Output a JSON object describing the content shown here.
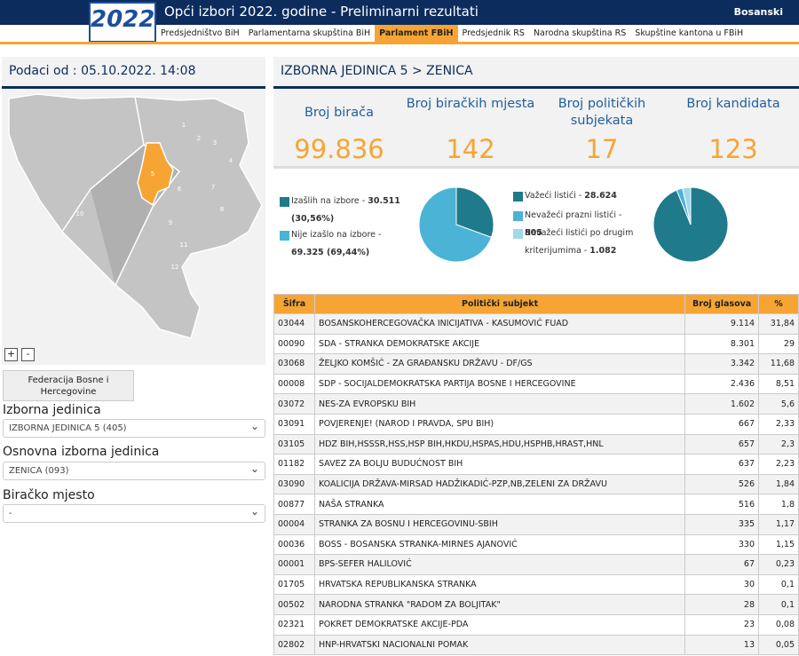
{
  "header": {
    "logo": "2022",
    "title": "Opći izbori 2022. godine - Preliminarni rezultati",
    "language": "Bosanski",
    "tabs": [
      "Predsjedništvo BiH",
      "Parlamentarna skupština BiH",
      "Parlament FBiH",
      "Predsjednik RS",
      "Narodna skupština RS",
      "Skupštine kantona u FBiH"
    ],
    "active_tab": 2
  },
  "sidebar": {
    "date": "Podaci od : 05.10.2022. 14:08",
    "map_labels": [
      "1",
      "2",
      "3",
      "4",
      "5",
      "6",
      "7",
      "8",
      "9",
      "10",
      "11",
      "12"
    ],
    "zoom_in": "+",
    "zoom_out": "-",
    "button": "Federacija Bosne i Hercegovine",
    "filters": [
      {
        "label": "Izborna jedinica",
        "value": "IZBORNA JEDINICA 5 (405)"
      },
      {
        "label": "Osnovna izborna jedinica",
        "value": "ZENICA (093)"
      },
      {
        "label": "Biračko mjesto",
        "value": "-"
      }
    ]
  },
  "main": {
    "heading": "IZBORNA JEDINICA 5 > ZENICA",
    "stats": [
      {
        "label": "Broj birača",
        "value": "99.836"
      },
      {
        "label": "Broj biračkih mjesta",
        "value": "142"
      },
      {
        "label": "Broj političkih subjekata",
        "value": "17"
      },
      {
        "label": "Broj kandidata",
        "value": "123"
      }
    ],
    "pies": [
      {
        "items": [
          {
            "label": "Izašlih na izbore -",
            "value": 30511,
            "value_label": "30.511 (30,56%)",
            "color": "#1f7a8c"
          },
          {
            "label": "Nije izašlo na izbore -",
            "value": 69325,
            "value_label": "69.325 (69,44%)",
            "color": "#4ab3d6"
          }
        ]
      },
      {
        "items": [
          {
            "label": "Važeći listići -",
            "value": 28624,
            "value_label": "28.624",
            "color": "#1f7a8c"
          },
          {
            "label": "Nevažeći prazni listići -",
            "value": 805,
            "value_label": "805",
            "color": "#4ab3d6"
          },
          {
            "label": "Nevažeći listići po drugim kriterijumima -",
            "value": 1082,
            "value_label": "1.082",
            "color": "#9fd9ea"
          }
        ]
      }
    ],
    "table": {
      "columns": [
        "Šifra",
        "Politički subjekt",
        "Broj glasova",
        "%"
      ],
      "rows": [
        [
          "03044",
          "BOSANSKOHERCEGOVAČKA INICIJATIVA - KASUMOVIĆ FUAD",
          "9.114",
          "31,84"
        ],
        [
          "00090",
          "SDA - STRANKA DEMOKRATSKE AKCIJE",
          "8.301",
          "29"
        ],
        [
          "03068",
          "ŽELJKO KOMŠIĆ - ZA GRAĐANSKU DRŽAVU - DF/GS",
          "3.342",
          "11,68"
        ],
        [
          "00008",
          "SDP - SOCIJALDEMOKRATSKA PARTIJA BOSNE I HERCEGOVINE",
          "2.436",
          "8,51"
        ],
        [
          "03072",
          "NES-ZA EVROPSKU BIH",
          "1.602",
          "5,6"
        ],
        [
          "03091",
          "POVJERENJE! (NAROD I PRAVDA, SPU BIH)",
          "667",
          "2,33"
        ],
        [
          "03105",
          "HDZ BIH,HSSSR,HSS,HSP BIH,HKDU,HSPAS,HDU,HSPHB,HRAST,HNL",
          "657",
          "2,3"
        ],
        [
          "01182",
          "SAVEZ ZA BOLJU BUDUĆNOST BIH",
          "637",
          "2,23"
        ],
        [
          "03090",
          "KOALICIJA DRŽAVA-MIRSAD HADŽIKADIĆ-PZP,NB,ZELENI ZA DRŽAVU",
          "526",
          "1,84"
        ],
        [
          "00877",
          "NAŠA STRANKA",
          "516",
          "1,8"
        ],
        [
          "00004",
          "STRANKA ZA BOSNU I HERCEGOVINU-SBIH",
          "335",
          "1,17"
        ],
        [
          "00036",
          "BOSS - BOSANSKA STRANKA-MIRNES AJANOVIĆ",
          "330",
          "1,15"
        ],
        [
          "00001",
          "BPS-SEFER HALILOVIĆ",
          "67",
          "0,23"
        ],
        [
          "01705",
          "HRVATSKA REPUBLIKANSKA STRANKA",
          "30",
          "0,1"
        ],
        [
          "00502",
          "NARODNA STRANKA \"RADOM ZA BOLJITAK\"",
          "28",
          "0,1"
        ],
        [
          "02321",
          "POKRET DEMOKRATSKE AKCIJE-PDA",
          "23",
          "0,08"
        ],
        [
          "02802",
          "HNP-HRVATSKI NACIONALNI POMAK",
          "13",
          "0,05"
        ]
      ]
    }
  }
}
